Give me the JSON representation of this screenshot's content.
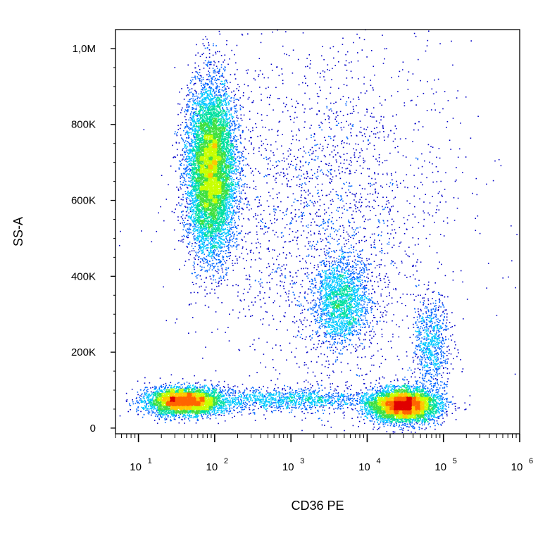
{
  "chart_data": {
    "type": "scatter",
    "subtype": "flow-cytometry density dot plot",
    "xlabel": "CD36 PE",
    "ylabel": "SS-A",
    "x_scale": "log",
    "xlim": [
      5,
      1000000
    ],
    "ylim": [
      -15000,
      1050000
    ],
    "x_ticks": [
      {
        "value": 10,
        "base": "10",
        "exp": "1"
      },
      {
        "value": 100,
        "base": "10",
        "exp": "2"
      },
      {
        "value": 1000,
        "base": "10",
        "exp": "3"
      },
      {
        "value": 10000,
        "base": "10",
        "exp": "4"
      },
      {
        "value": 100000,
        "base": "10",
        "exp": "5"
      },
      {
        "value": 1000000,
        "base": "10",
        "exp": "6"
      }
    ],
    "y_ticks": [
      {
        "value": 0,
        "label": "0"
      },
      {
        "value": 200000,
        "label": "200K"
      },
      {
        "value": 400000,
        "label": "400K"
      },
      {
        "value": 600000,
        "label": "600K"
      },
      {
        "value": 800000,
        "label": "800K"
      },
      {
        "value": 1000000,
        "label": "1,0M"
      }
    ],
    "grid": false,
    "legend": "none",
    "colormap": [
      "#0000c8",
      "#0064ff",
      "#00c8ff",
      "#00e0a0",
      "#40e040",
      "#c8ff00",
      "#ffc800",
      "#ff6400",
      "#e00000"
    ],
    "populations": [
      {
        "x_center": 90,
        "y_center": 680000,
        "x_log_sd": 0.16,
        "y_sd": 110000,
        "count": 9000
      },
      {
        "x_center": 40,
        "y_center": 70000,
        "x_log_sd": 0.25,
        "y_sd": 18000,
        "count": 4500
      },
      {
        "x_center": 4500,
        "y_center": 330000,
        "x_log_sd": 0.18,
        "y_sd": 60000,
        "count": 2000
      },
      {
        "x_center": 30000,
        "y_center": 60000,
        "x_log_sd": 0.22,
        "y_sd": 22000,
        "count": 5500
      },
      {
        "x_center": 70000,
        "y_center": 220000,
        "x_log_sd": 0.12,
        "y_sd": 60000,
        "count": 800
      },
      {
        "x_center": 1000,
        "y_center": 75000,
        "x_log_sd": 0.6,
        "y_sd": 15000,
        "count": 1200
      },
      {
        "x_center": 3000,
        "y_center": 550000,
        "x_log_sd": 0.8,
        "y_sd": 250000,
        "count": 2500
      }
    ]
  }
}
